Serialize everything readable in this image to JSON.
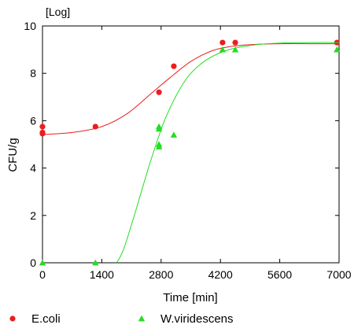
{
  "chart_data": {
    "type": "scatter",
    "title": "",
    "xlabel": "Time [min]",
    "ylabel": "CFU/g",
    "yunit": "[Log]",
    "xlim": [
      0,
      7000
    ],
    "ylim": [
      0,
      10
    ],
    "xticks": [
      0,
      1400,
      2800,
      4200,
      5600,
      7000
    ],
    "yticks": [
      0,
      2,
      4,
      6,
      8,
      10
    ],
    "grid": false,
    "legend_position": "bottom",
    "series": [
      {
        "name": "E.coli",
        "marker": "circle",
        "color": "#ee1c1c",
        "points": [
          [
            0,
            5.75
          ],
          [
            0,
            5.5
          ],
          [
            0,
            5.45
          ],
          [
            1250,
            5.75
          ],
          [
            2750,
            7.2
          ],
          [
            3100,
            8.3
          ],
          [
            4250,
            9.3
          ],
          [
            4550,
            9.3
          ],
          [
            6950,
            9.3
          ]
        ],
        "fit_curve": [
          [
            0,
            5.42
          ],
          [
            700,
            5.5
          ],
          [
            1400,
            5.75
          ],
          [
            2000,
            6.3
          ],
          [
            2600,
            7.2
          ],
          [
            3000,
            7.8
          ],
          [
            3500,
            8.5
          ],
          [
            4000,
            8.95
          ],
          [
            4500,
            9.15
          ],
          [
            5000,
            9.22
          ],
          [
            5600,
            9.25
          ],
          [
            6300,
            9.25
          ],
          [
            7000,
            9.25
          ]
        ]
      },
      {
        "name": "W.viridescens",
        "marker": "triangle",
        "color": "#22dd22",
        "points": [
          [
            0,
            0
          ],
          [
            1250,
            0
          ],
          [
            2750,
            5.75
          ],
          [
            2750,
            5.65
          ],
          [
            2750,
            5.0
          ],
          [
            2750,
            4.9
          ],
          [
            3100,
            5.4
          ],
          [
            4250,
            9.0
          ],
          [
            4550,
            9.0
          ],
          [
            6950,
            9.0
          ]
        ],
        "fit_curve": [
          [
            1750,
            0
          ],
          [
            1900,
            0.5
          ],
          [
            2100,
            1.6
          ],
          [
            2300,
            2.8
          ],
          [
            2500,
            4.0
          ],
          [
            2700,
            5.1
          ],
          [
            2900,
            6.1
          ],
          [
            3200,
            7.2
          ],
          [
            3500,
            8.0
          ],
          [
            3900,
            8.6
          ],
          [
            4400,
            9.0
          ],
          [
            5000,
            9.2
          ],
          [
            5600,
            9.28
          ],
          [
            6300,
            9.3
          ],
          [
            7000,
            9.3
          ]
        ]
      }
    ]
  }
}
